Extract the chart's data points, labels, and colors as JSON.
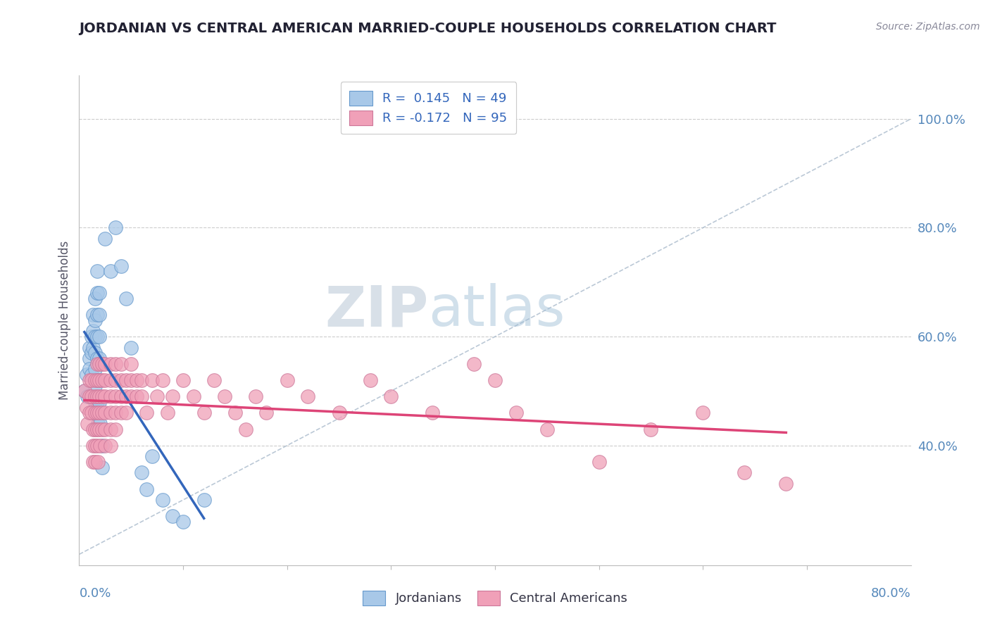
{
  "title": "JORDANIAN VS CENTRAL AMERICAN MARRIED-COUPLE HOUSEHOLDS CORRELATION CHART",
  "source": "Source: ZipAtlas.com",
  "ylabel": "Married-couple Households",
  "right_ytick_vals": [
    1.0,
    0.8,
    0.6,
    0.4
  ],
  "xlim": [
    0.0,
    0.8
  ],
  "ylim": [
    0.18,
    1.08
  ],
  "jordanian_color": "#A8C8E8",
  "jordanian_edge": "#6699CC",
  "central_american_color": "#F0A0B8",
  "central_american_edge": "#CC7799",
  "jordan_trend_color": "#3366BB",
  "ca_trend_color": "#DD4477",
  "diag_color": "#AABBCC",
  "jordan_scatter": [
    [
      0.005,
      0.5
    ],
    [
      0.007,
      0.53
    ],
    [
      0.008,
      0.49
    ],
    [
      0.01,
      0.56
    ],
    [
      0.01,
      0.58
    ],
    [
      0.01,
      0.54
    ],
    [
      0.012,
      0.6
    ],
    [
      0.012,
      0.57
    ],
    [
      0.012,
      0.53
    ],
    [
      0.013,
      0.64
    ],
    [
      0.013,
      0.61
    ],
    [
      0.013,
      0.58
    ],
    [
      0.015,
      0.67
    ],
    [
      0.015,
      0.63
    ],
    [
      0.015,
      0.6
    ],
    [
      0.015,
      0.57
    ],
    [
      0.015,
      0.54
    ],
    [
      0.015,
      0.51
    ],
    [
      0.015,
      0.48
    ],
    [
      0.017,
      0.72
    ],
    [
      0.017,
      0.68
    ],
    [
      0.017,
      0.64
    ],
    [
      0.017,
      0.6
    ],
    [
      0.017,
      0.56
    ],
    [
      0.017,
      0.52
    ],
    [
      0.017,
      0.48
    ],
    [
      0.018,
      0.44
    ],
    [
      0.019,
      0.68
    ],
    [
      0.019,
      0.64
    ],
    [
      0.019,
      0.6
    ],
    [
      0.019,
      0.56
    ],
    [
      0.019,
      0.52
    ],
    [
      0.019,
      0.48
    ],
    [
      0.02,
      0.44
    ],
    [
      0.022,
      0.4
    ],
    [
      0.022,
      0.36
    ],
    [
      0.025,
      0.78
    ],
    [
      0.03,
      0.72
    ],
    [
      0.035,
      0.8
    ],
    [
      0.04,
      0.73
    ],
    [
      0.045,
      0.67
    ],
    [
      0.05,
      0.58
    ],
    [
      0.06,
      0.35
    ],
    [
      0.065,
      0.32
    ],
    [
      0.07,
      0.38
    ],
    [
      0.08,
      0.3
    ],
    [
      0.09,
      0.27
    ],
    [
      0.1,
      0.26
    ],
    [
      0.12,
      0.3
    ]
  ],
  "central_american_scatter": [
    [
      0.005,
      0.5
    ],
    [
      0.007,
      0.47
    ],
    [
      0.008,
      0.44
    ],
    [
      0.01,
      0.52
    ],
    [
      0.01,
      0.49
    ],
    [
      0.01,
      0.46
    ],
    [
      0.012,
      0.52
    ],
    [
      0.012,
      0.49
    ],
    [
      0.012,
      0.46
    ],
    [
      0.013,
      0.43
    ],
    [
      0.013,
      0.4
    ],
    [
      0.013,
      0.37
    ],
    [
      0.015,
      0.52
    ],
    [
      0.015,
      0.49
    ],
    [
      0.015,
      0.46
    ],
    [
      0.015,
      0.43
    ],
    [
      0.015,
      0.4
    ],
    [
      0.015,
      0.37
    ],
    [
      0.017,
      0.55
    ],
    [
      0.017,
      0.52
    ],
    [
      0.017,
      0.49
    ],
    [
      0.017,
      0.46
    ],
    [
      0.017,
      0.43
    ],
    [
      0.017,
      0.4
    ],
    [
      0.018,
      0.37
    ],
    [
      0.019,
      0.55
    ],
    [
      0.019,
      0.52
    ],
    [
      0.019,
      0.49
    ],
    [
      0.019,
      0.46
    ],
    [
      0.019,
      0.43
    ],
    [
      0.02,
      0.4
    ],
    [
      0.022,
      0.55
    ],
    [
      0.022,
      0.52
    ],
    [
      0.022,
      0.49
    ],
    [
      0.022,
      0.46
    ],
    [
      0.022,
      0.43
    ],
    [
      0.025,
      0.55
    ],
    [
      0.025,
      0.52
    ],
    [
      0.025,
      0.49
    ],
    [
      0.025,
      0.46
    ],
    [
      0.025,
      0.43
    ],
    [
      0.025,
      0.4
    ],
    [
      0.03,
      0.55
    ],
    [
      0.03,
      0.52
    ],
    [
      0.03,
      0.49
    ],
    [
      0.03,
      0.46
    ],
    [
      0.03,
      0.43
    ],
    [
      0.03,
      0.4
    ],
    [
      0.035,
      0.55
    ],
    [
      0.035,
      0.52
    ],
    [
      0.035,
      0.49
    ],
    [
      0.035,
      0.46
    ],
    [
      0.035,
      0.43
    ],
    [
      0.04,
      0.55
    ],
    [
      0.04,
      0.52
    ],
    [
      0.04,
      0.49
    ],
    [
      0.04,
      0.46
    ],
    [
      0.045,
      0.52
    ],
    [
      0.045,
      0.49
    ],
    [
      0.045,
      0.46
    ],
    [
      0.05,
      0.55
    ],
    [
      0.05,
      0.52
    ],
    [
      0.05,
      0.49
    ],
    [
      0.055,
      0.52
    ],
    [
      0.055,
      0.49
    ],
    [
      0.06,
      0.52
    ],
    [
      0.06,
      0.49
    ],
    [
      0.065,
      0.46
    ],
    [
      0.07,
      0.52
    ],
    [
      0.075,
      0.49
    ],
    [
      0.08,
      0.52
    ],
    [
      0.085,
      0.46
    ],
    [
      0.09,
      0.49
    ],
    [
      0.1,
      0.52
    ],
    [
      0.11,
      0.49
    ],
    [
      0.12,
      0.46
    ],
    [
      0.13,
      0.52
    ],
    [
      0.14,
      0.49
    ],
    [
      0.15,
      0.46
    ],
    [
      0.16,
      0.43
    ],
    [
      0.17,
      0.49
    ],
    [
      0.18,
      0.46
    ],
    [
      0.2,
      0.52
    ],
    [
      0.22,
      0.49
    ],
    [
      0.25,
      0.46
    ],
    [
      0.28,
      0.52
    ],
    [
      0.3,
      0.49
    ],
    [
      0.34,
      0.46
    ],
    [
      0.38,
      0.55
    ],
    [
      0.4,
      0.52
    ],
    [
      0.42,
      0.46
    ],
    [
      0.45,
      0.43
    ],
    [
      0.5,
      0.37
    ],
    [
      0.55,
      0.43
    ],
    [
      0.6,
      0.46
    ],
    [
      0.64,
      0.35
    ],
    [
      0.68,
      0.33
    ]
  ],
  "watermark_color": "#C5D5E8",
  "background_color": "#FFFFFF"
}
